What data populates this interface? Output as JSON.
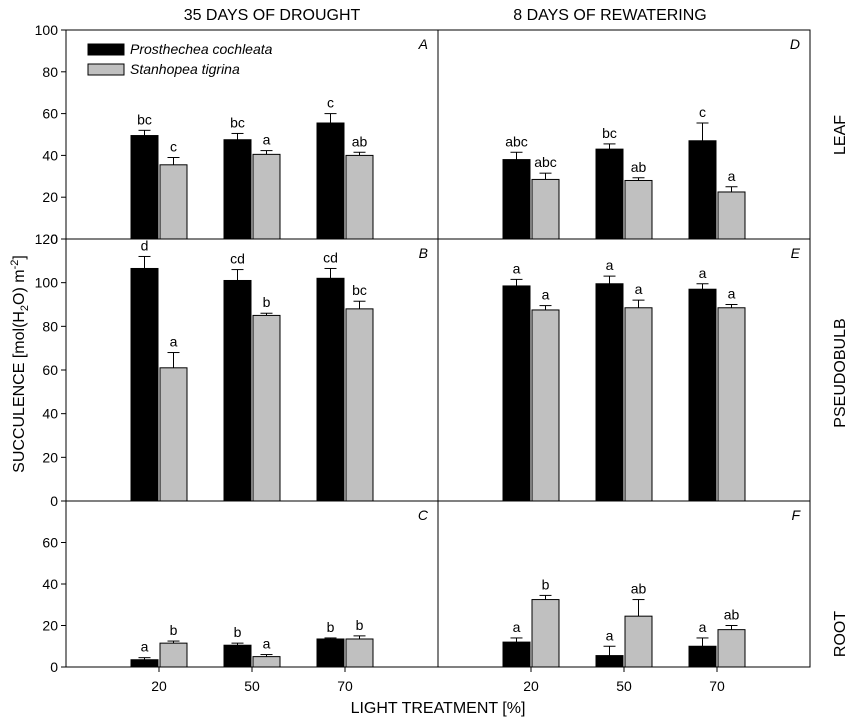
{
  "chart_data": {
    "type": "bar",
    "title": "",
    "xlabel": "LIGHT TREATMENT [%]",
    "ylabel": "SUCCULENCE [mol(H2O) m-2]",
    "column_titles": [
      "35 DAYS OF DROUGHT",
      "8 DAYS OF REWATERING"
    ],
    "row_labels": [
      "LEAF",
      "PSEUDOBULB",
      "ROOT"
    ],
    "categories": [
      "20",
      "50",
      "70"
    ],
    "legend": {
      "placement": "top-left",
      "entries": [
        {
          "name": "Prosthechea cochleata",
          "color": "#000000"
        },
        {
          "name": "Stanhopea tigrina",
          "color": "#c0c0c0"
        }
      ]
    },
    "colors": {
      "series1": "#000000",
      "series2": "#c0c0c0"
    },
    "panels": [
      {
        "id": "A",
        "row": 0,
        "col": 0,
        "ylim": [
          0,
          100
        ],
        "yticks": [
          "0",
          "20",
          "40",
          "60",
          "80",
          "100"
        ],
        "series": [
          {
            "name": "Prosthechea cochleata",
            "values": [
              49.5,
              47.5,
              55.5
            ],
            "errors": [
              2.5,
              3,
              4.5
            ],
            "labels": [
              "bc",
              "bc",
              "c"
            ]
          },
          {
            "name": "Stanhopea tigrina",
            "values": [
              35.5,
              40.5,
              40
            ],
            "errors": [
              3.5,
              1.8,
              1.5
            ],
            "labels": [
              "c",
              "a",
              "ab"
            ]
          }
        ]
      },
      {
        "id": "D",
        "row": 0,
        "col": 1,
        "ylim": [
          0,
          100
        ],
        "yticks": [],
        "series": [
          {
            "name": "Prosthechea cochleata",
            "values": [
              38,
              43,
              47
            ],
            "errors": [
              3.5,
              2.5,
              8.5
            ],
            "labels": [
              "abc",
              "bc",
              "c"
            ]
          },
          {
            "name": "Stanhopea tigrina",
            "values": [
              28.5,
              28,
              22.5
            ],
            "errors": [
              3,
              1.3,
              2.5
            ],
            "labels": [
              "abc",
              "ab",
              "a"
            ]
          }
        ]
      },
      {
        "id": "B",
        "row": 1,
        "col": 0,
        "ylim": [
          0,
          120
        ],
        "yticks": [
          "0",
          "20",
          "40",
          "60",
          "80",
          "100",
          "120"
        ],
        "series": [
          {
            "name": "Prosthechea cochleata",
            "values": [
              106.5,
              101,
              102
            ],
            "errors": [
              5.5,
              5,
              4.5
            ],
            "labels": [
              "d",
              "cd",
              "cd"
            ]
          },
          {
            "name": "Stanhopea tigrina",
            "values": [
              61,
              85,
              88
            ],
            "errors": [
              7,
              1,
              3.5
            ],
            "labels": [
              "a",
              "b",
              "bc"
            ]
          }
        ]
      },
      {
        "id": "E",
        "row": 1,
        "col": 1,
        "ylim": [
          0,
          120
        ],
        "yticks": [],
        "series": [
          {
            "name": "Prosthechea cochleata",
            "values": [
              98.5,
              99.5,
              97
            ],
            "errors": [
              3,
              3.5,
              2.5
            ],
            "labels": [
              "a",
              "a",
              "a"
            ]
          },
          {
            "name": "Stanhopea tigrina",
            "values": [
              87.5,
              88.5,
              88.5
            ],
            "errors": [
              2,
              3.5,
              1.5
            ],
            "labels": [
              "a",
              "a",
              "a"
            ]
          }
        ]
      },
      {
        "id": "C",
        "row": 2,
        "col": 0,
        "ylim": [
          0,
          80
        ],
        "yticks": [
          "0",
          "20",
          "40",
          "60"
        ],
        "series": [
          {
            "name": "Prosthechea cochleata",
            "values": [
              3.5,
              10.5,
              13.5
            ],
            "errors": [
              1,
              1,
              0.5
            ],
            "labels": [
              "a",
              "b",
              "b"
            ]
          },
          {
            "name": "Stanhopea tigrina",
            "values": [
              11.5,
              5,
              13.5
            ],
            "errors": [
              1,
              1,
              1.5
            ],
            "labels": [
              "b",
              "a",
              "b"
            ]
          }
        ]
      },
      {
        "id": "F",
        "row": 2,
        "col": 1,
        "ylim": [
          0,
          80
        ],
        "yticks": [],
        "series": [
          {
            "name": "Prosthechea cochleata",
            "values": [
              12,
              5.5,
              10
            ],
            "errors": [
              2,
              4.5,
              4
            ],
            "labels": [
              "a",
              "a",
              "a"
            ]
          },
          {
            "name": "Stanhopea tigrina",
            "values": [
              32.5,
              24.5,
              18
            ],
            "errors": [
              2,
              8,
              2
            ],
            "labels": [
              "b",
              "ab",
              "ab"
            ]
          }
        ]
      }
    ]
  }
}
